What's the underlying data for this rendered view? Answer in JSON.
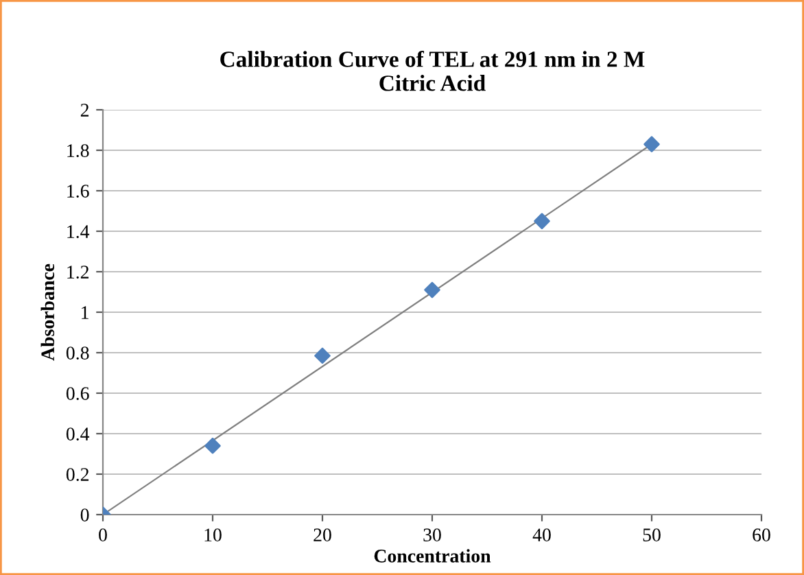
{
  "chart_data": {
    "type": "scatter",
    "title": "Calibration Curve of TEL at 291 nm in 2 M\nCitric Acid",
    "xlabel": "Concentration",
    "ylabel": "Absorbance",
    "series": [
      {
        "color": "#4f81bd",
        "marker": "diamond",
        "x": [
          0,
          10,
          20,
          30,
          40,
          50
        ],
        "values": [
          0,
          0.34,
          0.785,
          1.11,
          1.45,
          1.83
        ]
      },
      {
        "type": "line",
        "color": "#808080",
        "marker": "none",
        "line_style": "solid",
        "x": [
          0,
          50
        ],
        "values": [
          0,
          1.83
        ]
      }
    ],
    "xlim": [
      0,
      60
    ],
    "xticks": [
      0,
      10,
      20,
      30,
      40,
      50,
      60
    ],
    "ylim": [
      0,
      2
    ],
    "yticks": [
      0,
      0.2,
      0.4,
      0.6,
      0.8,
      1,
      1.2,
      1.4,
      1.6,
      1.8,
      2
    ],
    "grid": "y",
    "legend": false
  }
}
